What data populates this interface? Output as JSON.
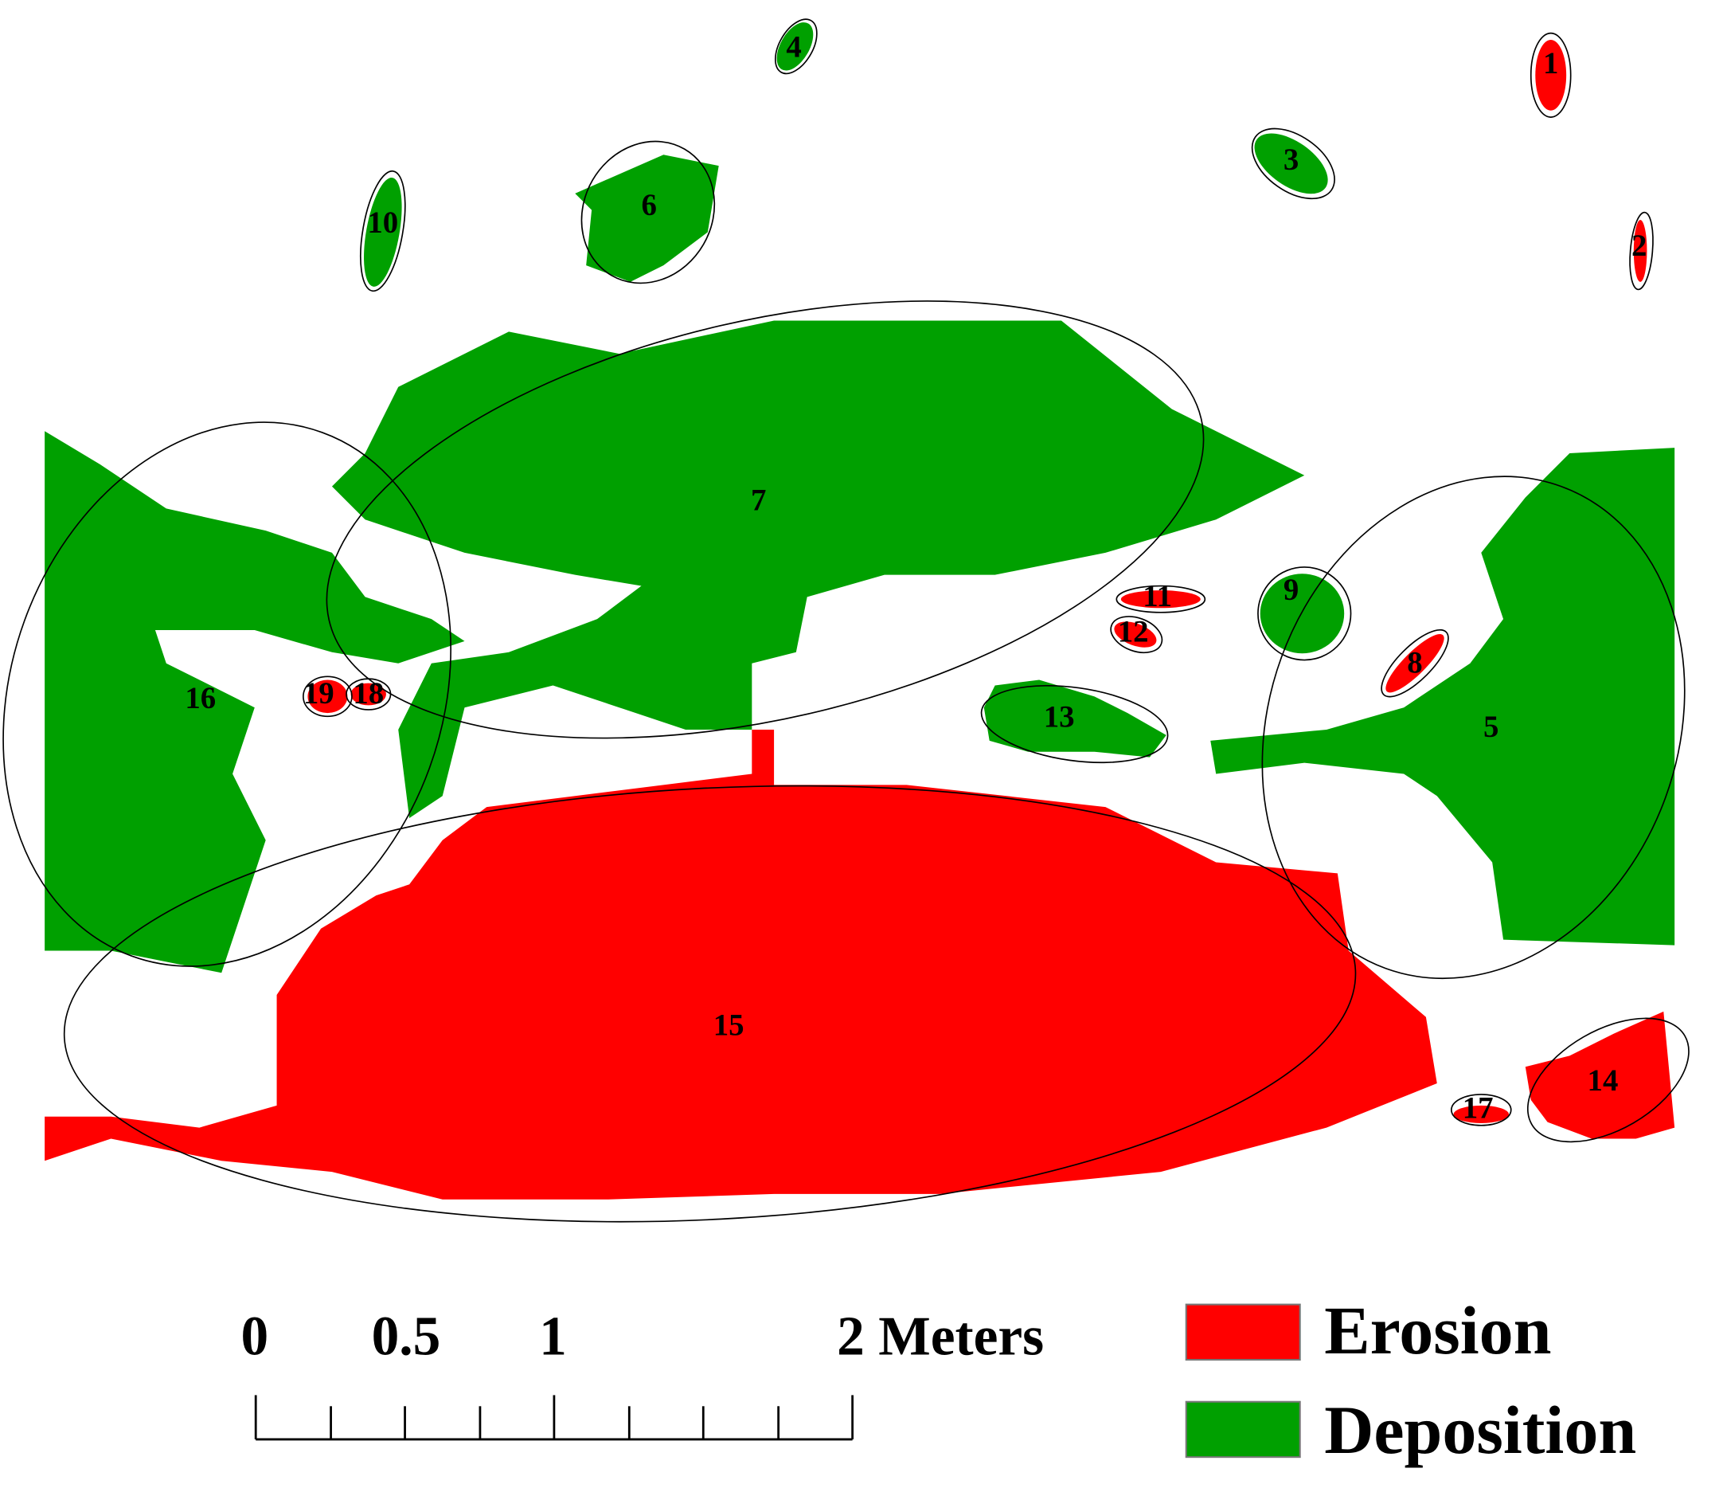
{
  "regions": [
    {
      "label": "1"
    },
    {
      "label": "2"
    },
    {
      "label": "3"
    },
    {
      "label": "4"
    },
    {
      "label": "5"
    },
    {
      "label": "6"
    },
    {
      "label": "7"
    },
    {
      "label": "8"
    },
    {
      "label": "9"
    },
    {
      "label": "10"
    },
    {
      "label": "11"
    },
    {
      "label": "12"
    },
    {
      "label": "13"
    },
    {
      "label": "14"
    },
    {
      "label": "15"
    },
    {
      "label": "16"
    },
    {
      "label": "17"
    },
    {
      "label": "18"
    },
    {
      "label": "19"
    }
  ],
  "scale_bar": {
    "labels": [
      "0",
      "0.5",
      "1",
      "2 Meters"
    ]
  },
  "legend": [
    {
      "label": "Erosion"
    },
    {
      "label": "Deposition"
    }
  ]
}
